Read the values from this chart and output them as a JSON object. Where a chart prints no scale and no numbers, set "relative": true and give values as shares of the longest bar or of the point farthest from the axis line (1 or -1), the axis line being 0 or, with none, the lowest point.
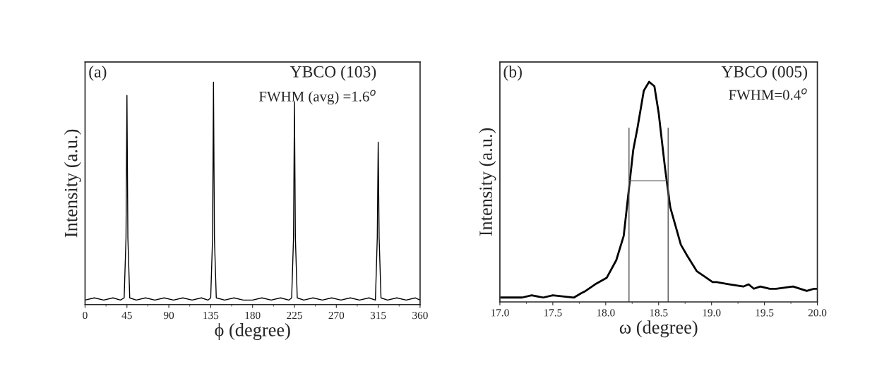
{
  "chart_data": [
    {
      "type": "line",
      "relative": true,
      "xlabel": "ϕ (degree)",
      "ylabel": "Intensity (a.u.)",
      "xlim": [
        0,
        360
      ],
      "xticks": [
        0,
        45,
        90,
        135,
        180,
        225,
        270,
        315,
        360
      ],
      "annotations": [
        "(a)",
        "YBCO (103)",
        "FWHM (avg) =1.6$^{o}$"
      ],
      "series": [
        {
          "color": "#000000",
          "x": [
            0,
            10,
            20,
            30,
            38,
            42,
            44,
            45,
            46,
            48,
            55,
            65,
            75,
            85,
            95,
            105,
            115,
            125,
            132,
            135,
            137,
            138,
            139,
            141,
            150,
            160,
            170,
            180,
            190,
            200,
            210,
            219,
            222,
            224,
            225,
            226,
            228,
            235,
            245,
            255,
            265,
            275,
            285,
            295,
            305,
            312,
            314,
            315,
            316,
            318,
            325,
            335,
            345,
            355,
            360
          ],
          "values": [
            0.02,
            0.03,
            0.02,
            0.03,
            0.02,
            0.03,
            0.3,
            0.94,
            0.3,
            0.03,
            0.02,
            0.03,
            0.02,
            0.03,
            0.02,
            0.03,
            0.02,
            0.03,
            0.02,
            0.03,
            0.3,
            1.0,
            0.3,
            0.03,
            0.02,
            0.03,
            0.02,
            0.02,
            0.03,
            0.02,
            0.03,
            0.02,
            0.03,
            0.3,
            0.91,
            0.3,
            0.03,
            0.02,
            0.03,
            0.02,
            0.03,
            0.02,
            0.03,
            0.02,
            0.03,
            0.02,
            0.3,
            0.73,
            0.3,
            0.03,
            0.02,
            0.03,
            0.02,
            0.03,
            0.02
          ]
        }
      ]
    },
    {
      "type": "line",
      "relative": true,
      "xlabel": "ω (degree)",
      "ylabel": "Intensity (a.u.)",
      "xlim": [
        17.0,
        20.0
      ],
      "xticks": [
        {
          "value": 17,
          "label": "17.0"
        },
        17.5,
        {
          "value": 18,
          "label": "18.0"
        },
        18.5,
        {
          "value": 19,
          "label": "19.0"
        },
        19.5,
        {
          "value": 20,
          "label": "20.0"
        }
      ],
      "annotations": [
        "(b)",
        "YBCO (005)",
        "FWHM=0.4$^{o}$"
      ],
      "series": [
        {
          "color": "#000000",
          "x": [
            17.01,
            17.21,
            17.3,
            17.41,
            17.5,
            17.7,
            17.77,
            17.81,
            17.9,
            18.01,
            18.1,
            18.17,
            18.2,
            18.26,
            18.3,
            18.36,
            18.41,
            18.46,
            18.5,
            18.56,
            18.61,
            18.71,
            18.77,
            18.86,
            18.95,
            19.01,
            19.05,
            19.17,
            19.3,
            19.35,
            19.4,
            19.46,
            19.55,
            19.61,
            19.77,
            19.9,
            19.97,
            20.0
          ],
          "values": [
            0.02,
            0.02,
            0.03,
            0.02,
            0.03,
            0.02,
            0.04,
            0.05,
            0.08,
            0.11,
            0.19,
            0.3,
            0.43,
            0.69,
            0.79,
            0.96,
            1.0,
            0.98,
            0.86,
            0.61,
            0.43,
            0.26,
            0.21,
            0.14,
            0.11,
            0.09,
            0.09,
            0.08,
            0.07,
            0.08,
            0.06,
            0.07,
            0.06,
            0.06,
            0.07,
            0.05,
            0.06,
            0.06
          ]
        },
        {
          "color": "#555555",
          "x": [
            18.22,
            18.22
          ],
          "values": [
            0,
            0.79
          ]
        },
        {
          "color": "#555555",
          "x": [
            18.22,
            18.59
          ],
          "values": [
            0.55,
            0.55
          ]
        },
        {
          "color": "#555555",
          "x": [
            18.59,
            18.59
          ],
          "values": [
            0,
            0.79
          ]
        }
      ]
    }
  ]
}
